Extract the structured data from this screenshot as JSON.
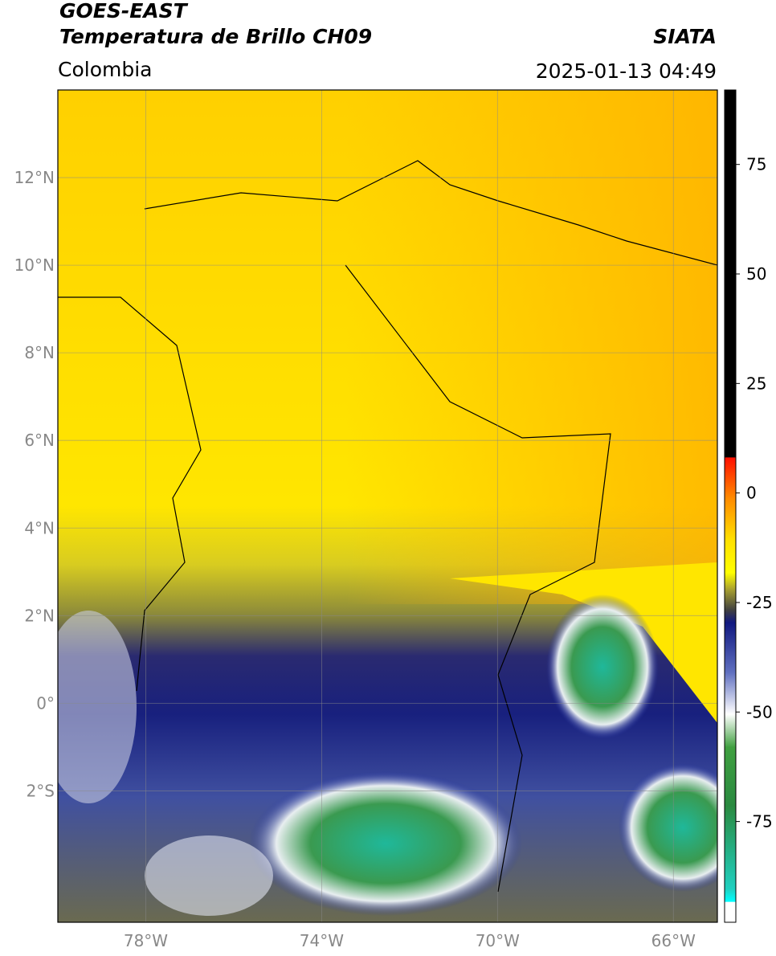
{
  "header": {
    "title": "GOES-EAST",
    "subtitle": "Temperatura de Brillo CH09",
    "brand": "SIATA",
    "region": "Colombia",
    "datetime": "2025-01-13 04:49"
  },
  "map": {
    "xlim": [
      -80,
      -65
    ],
    "ylim": [
      -5,
      14
    ],
    "yticks": [
      {
        "value": 12,
        "label": "12°N"
      },
      {
        "value": 10,
        "label": "10°N"
      },
      {
        "value": 8,
        "label": "8°N"
      },
      {
        "value": 6,
        "label": "6°N"
      },
      {
        "value": 4,
        "label": "4°N"
      },
      {
        "value": 2,
        "label": "2°N"
      },
      {
        "value": 0,
        "label": "0°"
      },
      {
        "value": -2,
        "label": "2°S"
      }
    ],
    "xticks": [
      {
        "value": -78,
        "label": "78°W"
      },
      {
        "value": -74,
        "label": "74°W"
      },
      {
        "value": -70,
        "label": "70°W"
      },
      {
        "value": -66,
        "label": "66°W"
      }
    ],
    "grid": true
  },
  "colorbar": {
    "lim": [
      -98,
      92
    ],
    "ticks": [
      75,
      50,
      25,
      0,
      -25,
      -50,
      -75
    ]
  }
}
